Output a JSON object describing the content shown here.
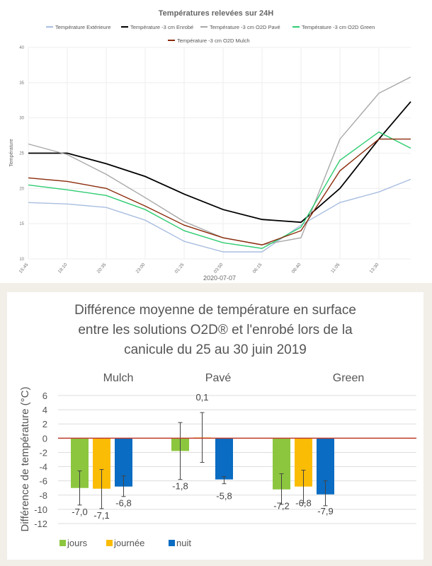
{
  "chart_data": [
    {
      "type": "line",
      "title": "Températures relevées sur 24H",
      "xlabel": "2020-07-07",
      "ylabel": "Température",
      "ylim": [
        10,
        40
      ],
      "yticks": [
        "10",
        "15",
        "20",
        "25",
        "30",
        "35",
        "40"
      ],
      "xticks": [
        "15:45",
        "18:10",
        "20:35",
        "23:00",
        "01:25",
        "03:50",
        "06:15",
        "08:40",
        "11:05",
        "13:30"
      ],
      "x": [
        "15:45",
        "18:10",
        "20:35",
        "23:00",
        "01:25",
        "03:50",
        "06:15",
        "08:40",
        "11:05",
        "13:30",
        "15:30"
      ],
      "grid": true,
      "legend": "top",
      "series": [
        {
          "name": "Température Extérieure",
          "color": "#a9bde0",
          "values": [
            18,
            17.8,
            17.3,
            15.5,
            12.5,
            11,
            11,
            14.8,
            18,
            19.5,
            21.3
          ]
        },
        {
          "name": "Température -3 cm Enrobé",
          "color": "#000000",
          "values": [
            25,
            25,
            23.5,
            21.7,
            19.2,
            17,
            15.6,
            15.2,
            20,
            27,
            32.3
          ]
        },
        {
          "name": "Température -3 cm O2D Pavé",
          "color": "#a8a8a8",
          "values": [
            26.3,
            24.8,
            22,
            18.7,
            15.3,
            13,
            12,
            13,
            27,
            33.5,
            35.8
          ]
        },
        {
          "name": "Température -3 cm O2D Green",
          "color": "#2ecc71",
          "values": [
            20.5,
            19.8,
            19,
            17,
            14,
            12.3,
            11.5,
            14.5,
            24,
            28,
            25.7
          ]
        },
        {
          "name": "Température -3 cm O2D Mulch",
          "color": "#8b2a0a",
          "values": [
            21.5,
            21,
            20,
            17.5,
            14.8,
            13,
            12,
            14,
            22.5,
            27,
            27
          ]
        }
      ]
    },
    {
      "type": "bar",
      "title": "Différence moyenne de température en surface entre les solutions O2D® et l'enrobé lors de la canicule du 25 au 30 juin 2019",
      "title_lines": [
        "Différence moyenne de température en surface",
        "entre les solutions O2D® et l'enrobé lors de la",
        "canicule du 25 au 30 juin 2019"
      ],
      "ylabel": "Différence de température (°C)",
      "ylim": [
        -12,
        6
      ],
      "yticks": [
        "6",
        "4",
        "2",
        "0",
        "-2",
        "-4",
        "-6",
        "-8",
        "-10",
        "-12"
      ],
      "categories": [
        "Mulch",
        "Pavé",
        "Green"
      ],
      "legend": "bottom-left",
      "zero_line_color": "#c0392b",
      "series": [
        {
          "name": "jours",
          "color": "#8cc63f",
          "values": [
            -7.0,
            -1.8,
            -7.2
          ],
          "labels": [
            "-7,0",
            "-1,8",
            "-7,2"
          ],
          "error_low": [
            -9.4,
            -5.8,
            -9.3
          ],
          "error_high": [
            -4.6,
            2.2,
            -5.0
          ]
        },
        {
          "name": "journée",
          "color": "#fbbc05",
          "values": [
            -7.1,
            0.1,
            -6.8
          ],
          "labels": [
            "-7,1",
            "0,1",
            "-6,8"
          ],
          "error_low": [
            -9.9,
            -3.4,
            -9.1
          ],
          "error_high": [
            -4.4,
            3.6,
            -4.5
          ]
        },
        {
          "name": "nuit",
          "color": "#0a6cc2",
          "values": [
            -6.8,
            -5.8,
            -7.9
          ],
          "labels": [
            "-6,8",
            "-5,8",
            "-7,9"
          ],
          "error_low": [
            -8.2,
            -6.4,
            -9.5
          ],
          "error_high": [
            -5.3,
            -5.4,
            -6.0
          ]
        }
      ]
    }
  ]
}
